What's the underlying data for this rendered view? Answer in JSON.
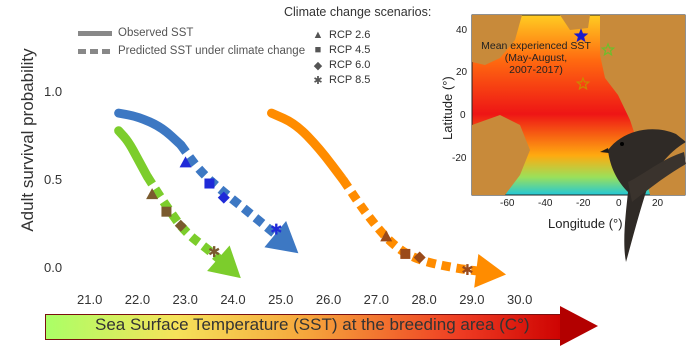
{
  "chart_data": {
    "type": "line",
    "ylabel": "Adult survival probability",
    "xlabel": "Sea Surface Temperature (SST) at the breeding area (C°)",
    "xlim": [
      20.5,
      30.2
    ],
    "ylim": [
      -0.1,
      1.1
    ],
    "x_ticks": [
      "21.0",
      "22.0",
      "23.0",
      "24.0",
      "25.0",
      "26.0",
      "27.0",
      "28.0",
      "29.0",
      "30.0"
    ],
    "y_ticks": [
      "0.0",
      "0.5",
      "1.0"
    ],
    "legend": {
      "observed": "Observed SST",
      "predicted": "Predicted SST under climate change"
    },
    "scenarios_title": "Climate change scenarios:",
    "scenarios": [
      {
        "label": "RCP 2.6",
        "symbol": "▲"
      },
      {
        "label": "RCP 4.5",
        "symbol": "■"
      },
      {
        "label": "RCP 6.0",
        "symbol": "◆"
      },
      {
        "label": "RCP 8.5",
        "symbol": "✱"
      }
    ],
    "series": [
      {
        "color": "#7ccd2c",
        "observed": [
          [
            21.6,
            0.78
          ],
          [
            21.8,
            0.72
          ],
          [
            22.0,
            0.62
          ],
          [
            22.2,
            0.52
          ]
        ],
        "predicted": [
          [
            22.2,
            0.52
          ],
          [
            22.6,
            0.35
          ],
          [
            23.0,
            0.2
          ],
          [
            23.5,
            0.1
          ],
          [
            24.0,
            -0.02
          ]
        ],
        "markers": [
          [
            22.3,
            0.42
          ],
          [
            22.6,
            0.32
          ],
          [
            22.9,
            0.24
          ],
          [
            23.6,
            0.09
          ]
        ]
      },
      {
        "color": "#3d78c3",
        "observed": [
          [
            21.6,
            0.88
          ],
          [
            22.0,
            0.86
          ],
          [
            22.5,
            0.8
          ],
          [
            22.9,
            0.7
          ]
        ],
        "predicted": [
          [
            22.9,
            0.7
          ],
          [
            23.3,
            0.55
          ],
          [
            23.8,
            0.43
          ],
          [
            24.4,
            0.3
          ],
          [
            25.2,
            0.12
          ]
        ],
        "markers": [
          [
            23.0,
            0.6
          ],
          [
            23.5,
            0.48
          ],
          [
            23.8,
            0.4
          ],
          [
            24.9,
            0.22
          ]
        ]
      },
      {
        "color": "#ff8c00",
        "observed": [
          [
            24.8,
            0.88
          ],
          [
            25.3,
            0.82
          ],
          [
            25.8,
            0.68
          ],
          [
            26.3,
            0.5
          ]
        ],
        "predicted": [
          [
            26.3,
            0.5
          ],
          [
            26.8,
            0.3
          ],
          [
            27.3,
            0.14
          ],
          [
            27.8,
            0.05
          ],
          [
            28.6,
            0.0
          ],
          [
            29.5,
            -0.03
          ]
        ],
        "markers": [
          [
            27.2,
            0.18
          ],
          [
            27.6,
            0.08
          ],
          [
            27.9,
            0.06
          ],
          [
            28.9,
            -0.01
          ]
        ]
      }
    ],
    "inset_map": {
      "annotation": "Mean experienced SST\n(May-August,\n2007-2017)",
      "xlabel": "Longitude (°)",
      "ylabel": "Latitude (°)",
      "x_ticks": [
        "-60",
        "-40",
        "-20",
        "0",
        "20"
      ],
      "y_ticks": [
        "40",
        "20",
        "0",
        "-20"
      ]
    }
  }
}
